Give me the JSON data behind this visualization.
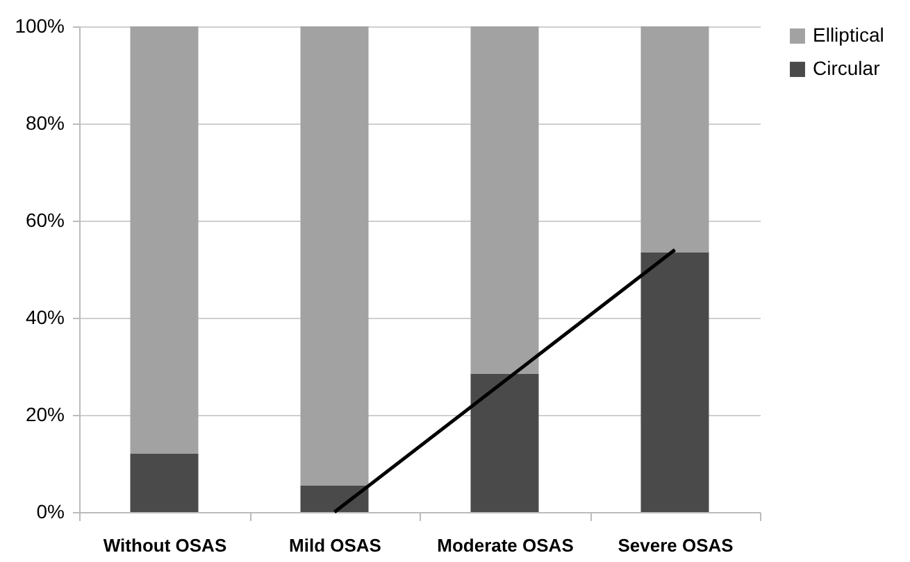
{
  "chart_data": {
    "type": "bar",
    "stacked": true,
    "categories": [
      "Without OSAS",
      "Mild OSAS",
      "Moderate OSAS",
      "Severe OSAS"
    ],
    "series": [
      {
        "name": "Circular",
        "color": "#4a4a4a",
        "values": [
          12,
          5.5,
          28.5,
          53.5
        ]
      },
      {
        "name": "Elliptical",
        "color": "#a2a2a2",
        "values": [
          88,
          94.5,
          71.5,
          46.5
        ]
      },
      {
        "type": "line",
        "color": "#000000",
        "x": [
          "Mild OSAS",
          "Severe OSAS"
        ],
        "values": [
          0,
          54
        ]
      }
    ],
    "ylim": [
      0,
      100
    ],
    "yticks": [
      {
        "value": 0,
        "label": "0%"
      },
      {
        "value": 20,
        "label": "20%"
      },
      {
        "value": 40,
        "label": "40%"
      },
      {
        "value": 60,
        "label": "60%"
      },
      {
        "value": 80,
        "label": "80%"
      },
      {
        "value": 100,
        "label": "100%"
      }
    ],
    "grid": "y",
    "legend": "right"
  }
}
